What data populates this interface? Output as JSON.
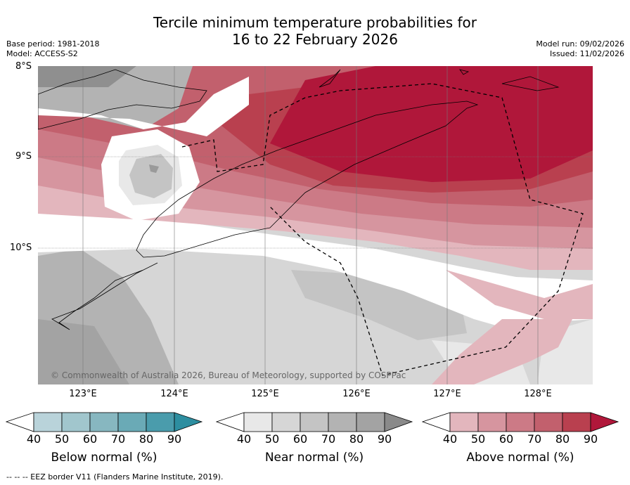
{
  "title": {
    "line1": "Tercile minimum temperature probabilities for",
    "line2": "16 to 22 February 2026"
  },
  "meta_left": {
    "base_period": "Base period: 1981-2018",
    "model": "Model: ACCESS-S2"
  },
  "meta_right": {
    "model_run": "Model run: 09/02/2026",
    "issued": "Issued: 11/02/2026"
  },
  "map": {
    "lat_labels": [
      "8°S",
      "9°S",
      "10°S"
    ],
    "lon_labels": [
      "123°E",
      "124°E",
      "125°E",
      "126°E",
      "127°E",
      "128°E"
    ],
    "copyright": "© Commonwealth of Australia 2026, Bureau of Meteorology, supported by COSPPac"
  },
  "legends": [
    {
      "label": "Below normal (%)",
      "ticks": [
        "40",
        "50",
        "60",
        "70",
        "80",
        "90"
      ],
      "colors": [
        "#b9d3da",
        "#a1c6cd",
        "#87b7c0",
        "#6aaab6",
        "#4a9cac",
        "#2d8ea0"
      ]
    },
    {
      "label": "Near normal (%)",
      "ticks": [
        "40",
        "50",
        "60",
        "70",
        "80",
        "90"
      ],
      "colors": [
        "#e8e8e8",
        "#d6d6d6",
        "#c4c4c4",
        "#b3b3b3",
        "#a3a3a3",
        "#8a8a8a"
      ]
    },
    {
      "label": "Above normal (%)",
      "ticks": [
        "40",
        "50",
        "60",
        "70",
        "80",
        "90"
      ],
      "colors": [
        "#e3b6bd",
        "#d6959f",
        "#cc7a86",
        "#c2606d",
        "#b9404f",
        "#b0173a"
      ]
    }
  ],
  "footnote": "--  --  -- EEZ border V11 (Flanders Marine Institute, 2019)."
}
